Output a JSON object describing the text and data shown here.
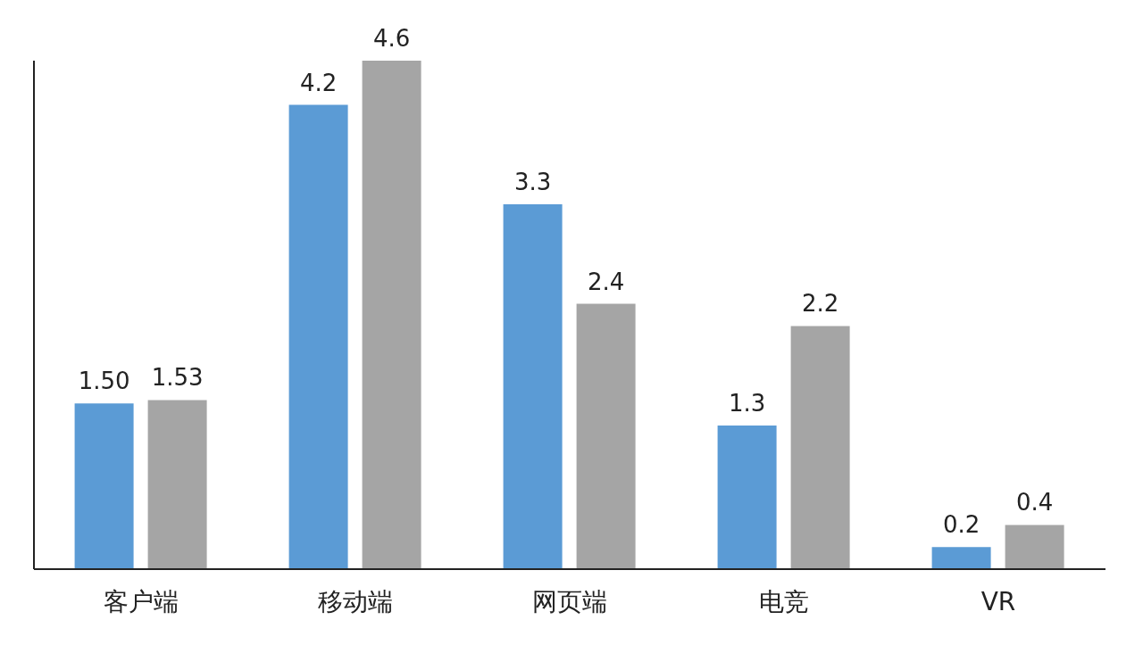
{
  "chart_data": {
    "type": "bar",
    "categories": [
      "客户端",
      "移动端",
      "网页端",
      "电竞",
      "VR"
    ],
    "series": [
      {
        "color": "#5b9bd5",
        "values": [
          1.5,
          4.2,
          3.3,
          1.3,
          0.2
        ],
        "value_labels": [
          "1.50",
          "4.2",
          "3.3",
          "1.3",
          "0.2"
        ]
      },
      {
        "color": "#a5a5a5",
        "values": [
          1.53,
          4.6,
          2.4,
          2.2,
          0.4
        ],
        "value_labels": [
          "1.53",
          "4.6",
          "2.4",
          "2.2",
          "0.4"
        ]
      }
    ],
    "relative": false,
    "grid": false,
    "legend": false
  }
}
